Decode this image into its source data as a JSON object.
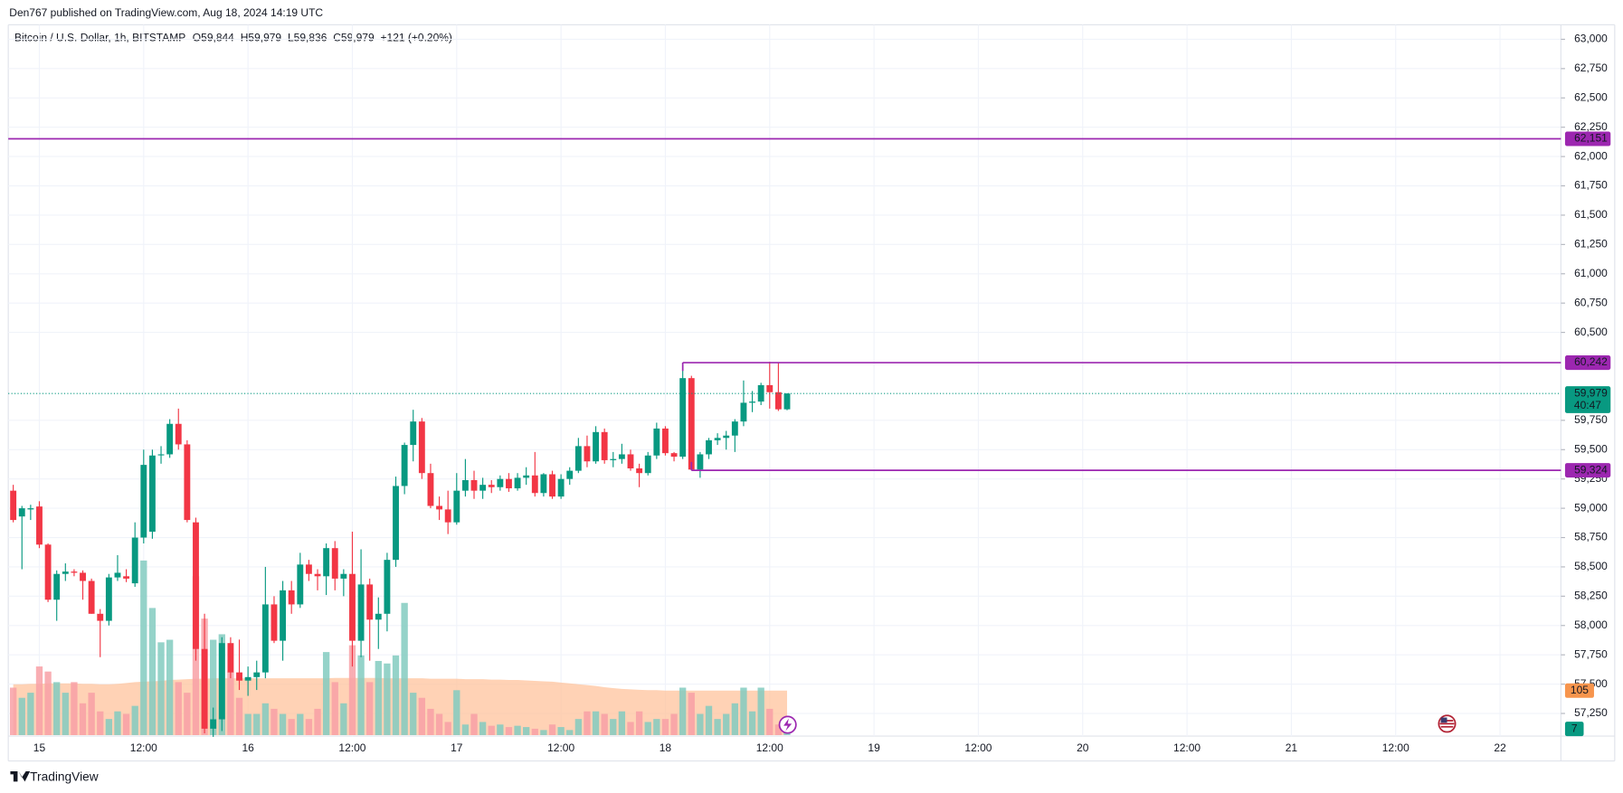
{
  "header": {
    "publisher": "Den767 published on TradingView.com, Aug 18, 2024 14:19 UTC",
    "footer": "TradingView"
  },
  "chart_data": {
    "type": "candlestick",
    "symbol": "Bitcoin / U.S. Dollar, 1h, BITSTAMP",
    "ohlc_legend": [
      "O59,844",
      "H59,979",
      "L59,836",
      "C59,979",
      "+121 (+0.20%)"
    ],
    "categories": [
      "15",
      "12:00",
      "16",
      "12:00",
      "17",
      "12:00",
      "18",
      "12:00",
      "19",
      "12:00",
      "20",
      "12:00",
      "21",
      "12:00",
      "22"
    ],
    "open": [
      59150,
      58930,
      58990,
      59015,
      58690,
      58220,
      58440,
      58460,
      58450,
      58380,
      58100,
      58040,
      58410,
      58420,
      58360,
      58750,
      58800,
      59455,
      59460,
      59720,
      59545,
      58880,
      57800,
      57120,
      57200,
      57850,
      57600,
      57530,
      57560,
      57600,
      58180,
      57870,
      58300,
      58180,
      58520,
      58440,
      58420,
      58660,
      58400,
      58440,
      57870,
      58350,
      58050,
      58100,
      58560,
      59190,
      59540,
      59740,
      59300,
      59020,
      58990,
      58880,
      59150,
      59240,
      59150,
      59200,
      59180,
      59250,
      59170,
      59260,
      59280,
      59130,
      59290,
      59100,
      59250,
      59320,
      59530,
      59400,
      59650,
      59410,
      59420,
      59460,
      59340,
      59300,
      59450,
      59680,
      59470,
      59440,
      60110,
      59330,
      59460,
      59580,
      59600,
      59620,
      59740,
      59900,
      59910,
      60050,
      59990,
      59844
    ],
    "high": [
      59200,
      59020,
      59030,
      59060,
      58700,
      58470,
      58530,
      58480,
      58470,
      58400,
      58140,
      58440,
      58600,
      58480,
      58880,
      59500,
      59500,
      59530,
      59760,
      59850,
      59580,
      58920,
      58100,
      57300,
      57900,
      57900,
      57880,
      57650,
      57700,
      58500,
      58250,
      58380,
      58380,
      58620,
      58560,
      58480,
      58700,
      58720,
      58480,
      58800,
      58650,
      58400,
      58240,
      58620,
      59270,
      59560,
      59840,
      59770,
      59380,
      59100,
      59150,
      59300,
      59420,
      59320,
      59260,
      59240,
      59280,
      59300,
      59300,
      59350,
      59480,
      59300,
      59320,
      59290,
      59350,
      59600,
      59620,
      59700,
      59680,
      59480,
      59550,
      59500,
      59380,
      59480,
      59730,
      59700,
      59480,
      60242,
      60130,
      59480,
      59600,
      59640,
      59660,
      59760,
      60090,
      60000,
      60070,
      60250,
      60240,
      59979
    ],
    "low": [
      58880,
      58480,
      58900,
      58660,
      58200,
      58040,
      58380,
      58420,
      58220,
      58100,
      57730,
      58000,
      58380,
      58370,
      58330,
      58700,
      58740,
      59380,
      59430,
      59500,
      58880,
      57700,
      57080,
      57050,
      57100,
      57550,
      57450,
      57400,
      57450,
      57550,
      57850,
      57700,
      58100,
      58150,
      58380,
      58300,
      58260,
      58300,
      58250,
      57650,
      57730,
      57700,
      57800,
      57950,
      58500,
      59120,
      59400,
      59250,
      59000,
      58900,
      58780,
      58860,
      59100,
      59080,
      59080,
      59130,
      59150,
      59140,
      59150,
      59200,
      59100,
      59100,
      59080,
      59080,
      59200,
      59300,
      59350,
      59380,
      59380,
      59350,
      59380,
      59320,
      59180,
      59280,
      59420,
      59450,
      59400,
      59420,
      59324,
      59260,
      59420,
      59540,
      59500,
      59480,
      59700,
      59820,
      59880,
      59850,
      59830,
      59836
    ],
    "close": [
      58900,
      59000,
      59000,
      58690,
      58220,
      58440,
      58460,
      58450,
      58380,
      58100,
      58040,
      58410,
      58450,
      58400,
      58750,
      59370,
      59450,
      59460,
      59720,
      59545,
      58900,
      57800,
      57120,
      57200,
      57850,
      57600,
      57530,
      57560,
      57600,
      58180,
      57870,
      58300,
      58180,
      58520,
      58440,
      58420,
      58660,
      58400,
      58440,
      57870,
      58350,
      58050,
      58100,
      58560,
      59190,
      59540,
      59740,
      59300,
      59020,
      58990,
      58880,
      59150,
      59240,
      59150,
      59200,
      59180,
      59250,
      59170,
      59260,
      59280,
      59130,
      59290,
      59100,
      59250,
      59320,
      59530,
      59400,
      59650,
      59410,
      59420,
      59460,
      59340,
      59300,
      59450,
      59680,
      59470,
      59440,
      60110,
      59330,
      59460,
      59580,
      59600,
      59620,
      59740,
      59900,
      59910,
      60050,
      59990,
      59844,
      59979
    ],
    "volume": [
      112,
      88,
      100,
      162,
      150,
      125,
      100,
      125,
      75,
      100,
      56,
      38,
      56,
      50,
      69,
      412,
      300,
      219,
      225,
      125,
      100,
      375,
      275,
      225,
      238,
      150,
      88,
      50,
      50,
      75,
      62,
      50,
      38,
      50,
      38,
      62,
      196,
      125,
      75,
      212,
      188,
      125,
      175,
      169,
      188,
      312,
      100,
      88,
      62,
      50,
      31,
      106,
      25,
      50,
      31,
      22,
      25,
      19,
      22,
      19,
      15,
      12,
      25,
      19,
      12,
      38,
      56,
      56,
      50,
      38,
      56,
      31,
      56,
      31,
      38,
      38,
      50,
      112,
      100,
      50,
      69,
      38,
      50,
      75,
      112,
      56,
      112,
      62,
      25,
      7
    ],
    "volume_ma": [
      120,
      120,
      121,
      121,
      122,
      122,
      122,
      122,
      121,
      121,
      120,
      120,
      121,
      123,
      125,
      126,
      127,
      128,
      130,
      131,
      132,
      133,
      133,
      134,
      134,
      134,
      134,
      134,
      134,
      134,
      134,
      134,
      134,
      134,
      134,
      134,
      134,
      135,
      135,
      135,
      135,
      135,
      135,
      134,
      134,
      134,
      134,
      134,
      133,
      133,
      133,
      133,
      132,
      132,
      132,
      131,
      131,
      130,
      130,
      129,
      128,
      127,
      126,
      124,
      122,
      120,
      118,
      116,
      113,
      111,
      109,
      108,
      107,
      106,
      106,
      105,
      105,
      105,
      105,
      105,
      105,
      105,
      105,
      105,
      105,
      105,
      105,
      105,
      105,
      105
    ],
    "levels": [
      {
        "value": 62151,
        "label": "62,151"
      },
      {
        "value": 60242,
        "label": "60,242"
      },
      {
        "value": 59324,
        "label": "59,324"
      }
    ],
    "last_price": {
      "value": 59979,
      "label": "59,979"
    },
    "countdown": "40:47",
    "ylim": [
      57100,
      63150
    ],
    "yticks": [
      {
        "value": 63000,
        "label": "63,000"
      },
      {
        "value": 62750,
        "label": "62,750"
      },
      {
        "value": 62500,
        "label": "62,500"
      },
      {
        "value": 62250,
        "label": "62,250"
      },
      {
        "value": 62000,
        "label": "62,000"
      },
      {
        "value": 61750,
        "label": "61,750"
      },
      {
        "value": 61500,
        "label": "61,500"
      },
      {
        "value": 61250,
        "label": "61,250"
      },
      {
        "value": 61000,
        "label": "61,000"
      },
      {
        "value": 60750,
        "label": "60,750"
      },
      {
        "value": 60500,
        "label": "60,500"
      },
      {
        "value": 59750,
        "label": "59,750"
      },
      {
        "value": 59500,
        "label": "59,500"
      },
      {
        "value": 59250,
        "label": "59,250"
      },
      {
        "value": 59000,
        "label": "59,000"
      },
      {
        "value": 58750,
        "label": "58,750"
      },
      {
        "value": 58500,
        "label": "58,500"
      },
      {
        "value": 58250,
        "label": "58,250"
      },
      {
        "value": 58000,
        "label": "58,000"
      },
      {
        "value": 57750,
        "label": "57,750"
      },
      {
        "value": 57500,
        "label": "57,500"
      },
      {
        "value": 57250,
        "label": "57,250"
      }
    ],
    "grid": true,
    "up_color": "#089981",
    "down_color": "#f23645",
    "volume_up_color": "#82cbbf",
    "volume_down_color": "#f8a0a6",
    "ma_color": "#ffc39c",
    "level_color": "#9c27b0",
    "ma_label_color": "#f7954d"
  }
}
